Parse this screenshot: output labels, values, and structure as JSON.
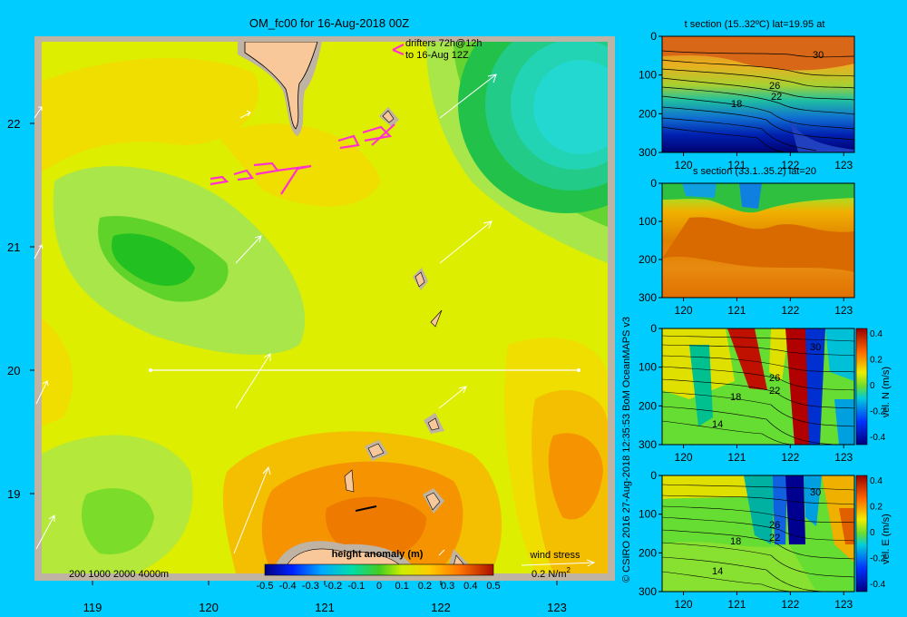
{
  "colors": {
    "background": "#00ccff",
    "frame": "#bfb3a3",
    "land": "#f8c79a",
    "drifter": "#ff33cc",
    "wind": "#ffffff"
  },
  "main_map": {
    "title": "OM_fc00 for 16-Aug-2018 00Z",
    "drifter_note_1": "drifters 72h@12h",
    "drifter_note_2": "to 16-Aug 12Z",
    "depth_legend": "200  1000  2000  4000m",
    "colorbar_title": "height anomaly (m)",
    "colorbar_ticks": [
      "-0.5",
      "-0.4",
      "-0.3",
      "-0.2",
      "-0.1",
      "0",
      "0.1",
      "0.2",
      "0.3",
      "0.4",
      "0.5"
    ],
    "wind_label": "wind stress",
    "wind_scale": "0.2 N/m",
    "wind_scale_sup": "2",
    "x_ticks": [
      "119",
      "120",
      "121",
      "122",
      "123"
    ],
    "y_ticks": [
      "22",
      "21",
      "20",
      "19"
    ]
  },
  "panels": {
    "t_title": "t section (15..32ºC) lat=19.95 at",
    "s_title": "s section (33.1..35.2) lat=20",
    "x_ticks": [
      "120",
      "121",
      "122",
      "123"
    ],
    "depth_ticks": [
      "0",
      "100",
      "200",
      "300"
    ],
    "contour_labels": {
      "t": [
        "30",
        "26",
        "22",
        "18"
      ],
      "vn": [
        "30",
        "26",
        "22",
        "18",
        "14"
      ],
      "ve": [
        "30",
        "26",
        "22",
        "18",
        "14"
      ]
    },
    "vn_label": "vel. N (m/s)",
    "ve_label": "vel. E (m/s)",
    "vel_ticks": [
      "0.4",
      "0.2",
      "0",
      "-0.2",
      "-0.4"
    ]
  },
  "credit": "© CSIRO 2016   27-Aug-2018 12:35:53 BoM OceanMAPS v3",
  "chart_data": [
    {
      "type": "heatmap",
      "title": "OM_fc00 for 16-Aug-2018 00Z",
      "variable": "height anomaly (m)",
      "color_range": [
        -0.5,
        0.5
      ],
      "x_range": [
        118.5,
        123.5
      ],
      "y_range": [
        18.3,
        22.7
      ],
      "section_line": {
        "lat": 20,
        "lon": [
          119.5,
          123.1
        ]
      },
      "features": [
        {
          "type": "high",
          "lon": 121.5,
          "lat": 18.8,
          "value": 0.3
        },
        {
          "type": "low",
          "lon": 119.6,
          "lat": 21.0,
          "value": -0.1
        },
        {
          "type": "low",
          "lon": 123.0,
          "lat": 22.1,
          "value": -0.25
        },
        {
          "type": "high",
          "lon": 123.2,
          "lat": 19.2,
          "value": 0.2
        }
      ]
    },
    {
      "type": "heatmap",
      "title": "t section (15..32ºC) lat=19.95 at",
      "x_range": [
        119.6,
        123.2
      ],
      "depth_range": [
        0,
        300
      ],
      "contour_labels": [
        30,
        26,
        22,
        18
      ]
    },
    {
      "type": "heatmap",
      "title": "s section (33.1..35.2) lat=20",
      "x_range": [
        119.6,
        123.2
      ],
      "depth_range": [
        0,
        300
      ]
    },
    {
      "type": "heatmap",
      "variable": "vel. N (m/s)",
      "x_range": [
        119.6,
        123.2
      ],
      "depth_range": [
        0,
        300
      ],
      "color_range": [
        -0.4,
        0.4
      ]
    },
    {
      "type": "heatmap",
      "variable": "vel. E (m/s)",
      "x_range": [
        119.6,
        123.2
      ],
      "depth_range": [
        0,
        300
      ],
      "color_range": [
        -0.4,
        0.4
      ]
    }
  ]
}
